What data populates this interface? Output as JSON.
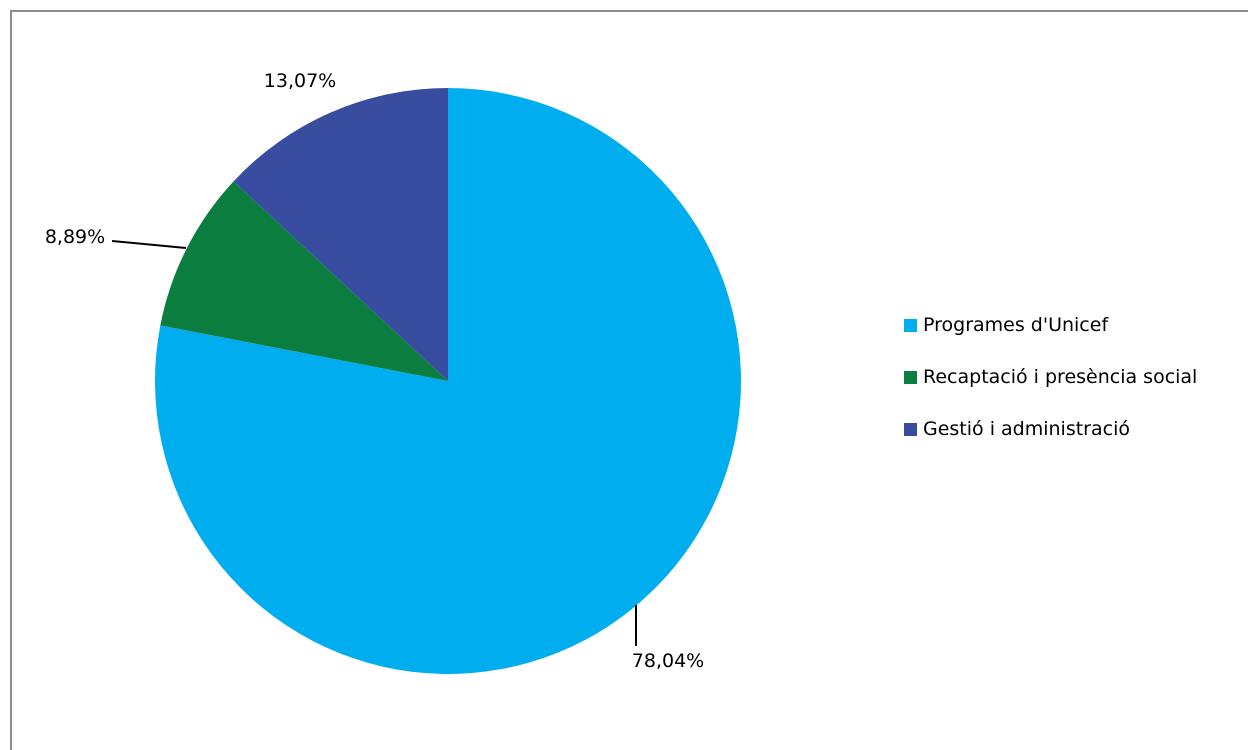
{
  "chart_data": {
    "type": "pie",
    "title": "",
    "slices": [
      {
        "label": "Programes d'Unicef",
        "value": 78.04,
        "display": "78,04%",
        "color": "#00AEEF"
      },
      {
        "label": "Recaptació i presència social",
        "value": 8.89,
        "display": "8,89%",
        "color": "#0B7D3E"
      },
      {
        "label": "Gestió i administració",
        "value": 13.07,
        "display": "13,07%",
        "color": "#384D9F"
      }
    ],
    "legend_position": "right",
    "start_angle": "12 o'clock, clockwise"
  }
}
